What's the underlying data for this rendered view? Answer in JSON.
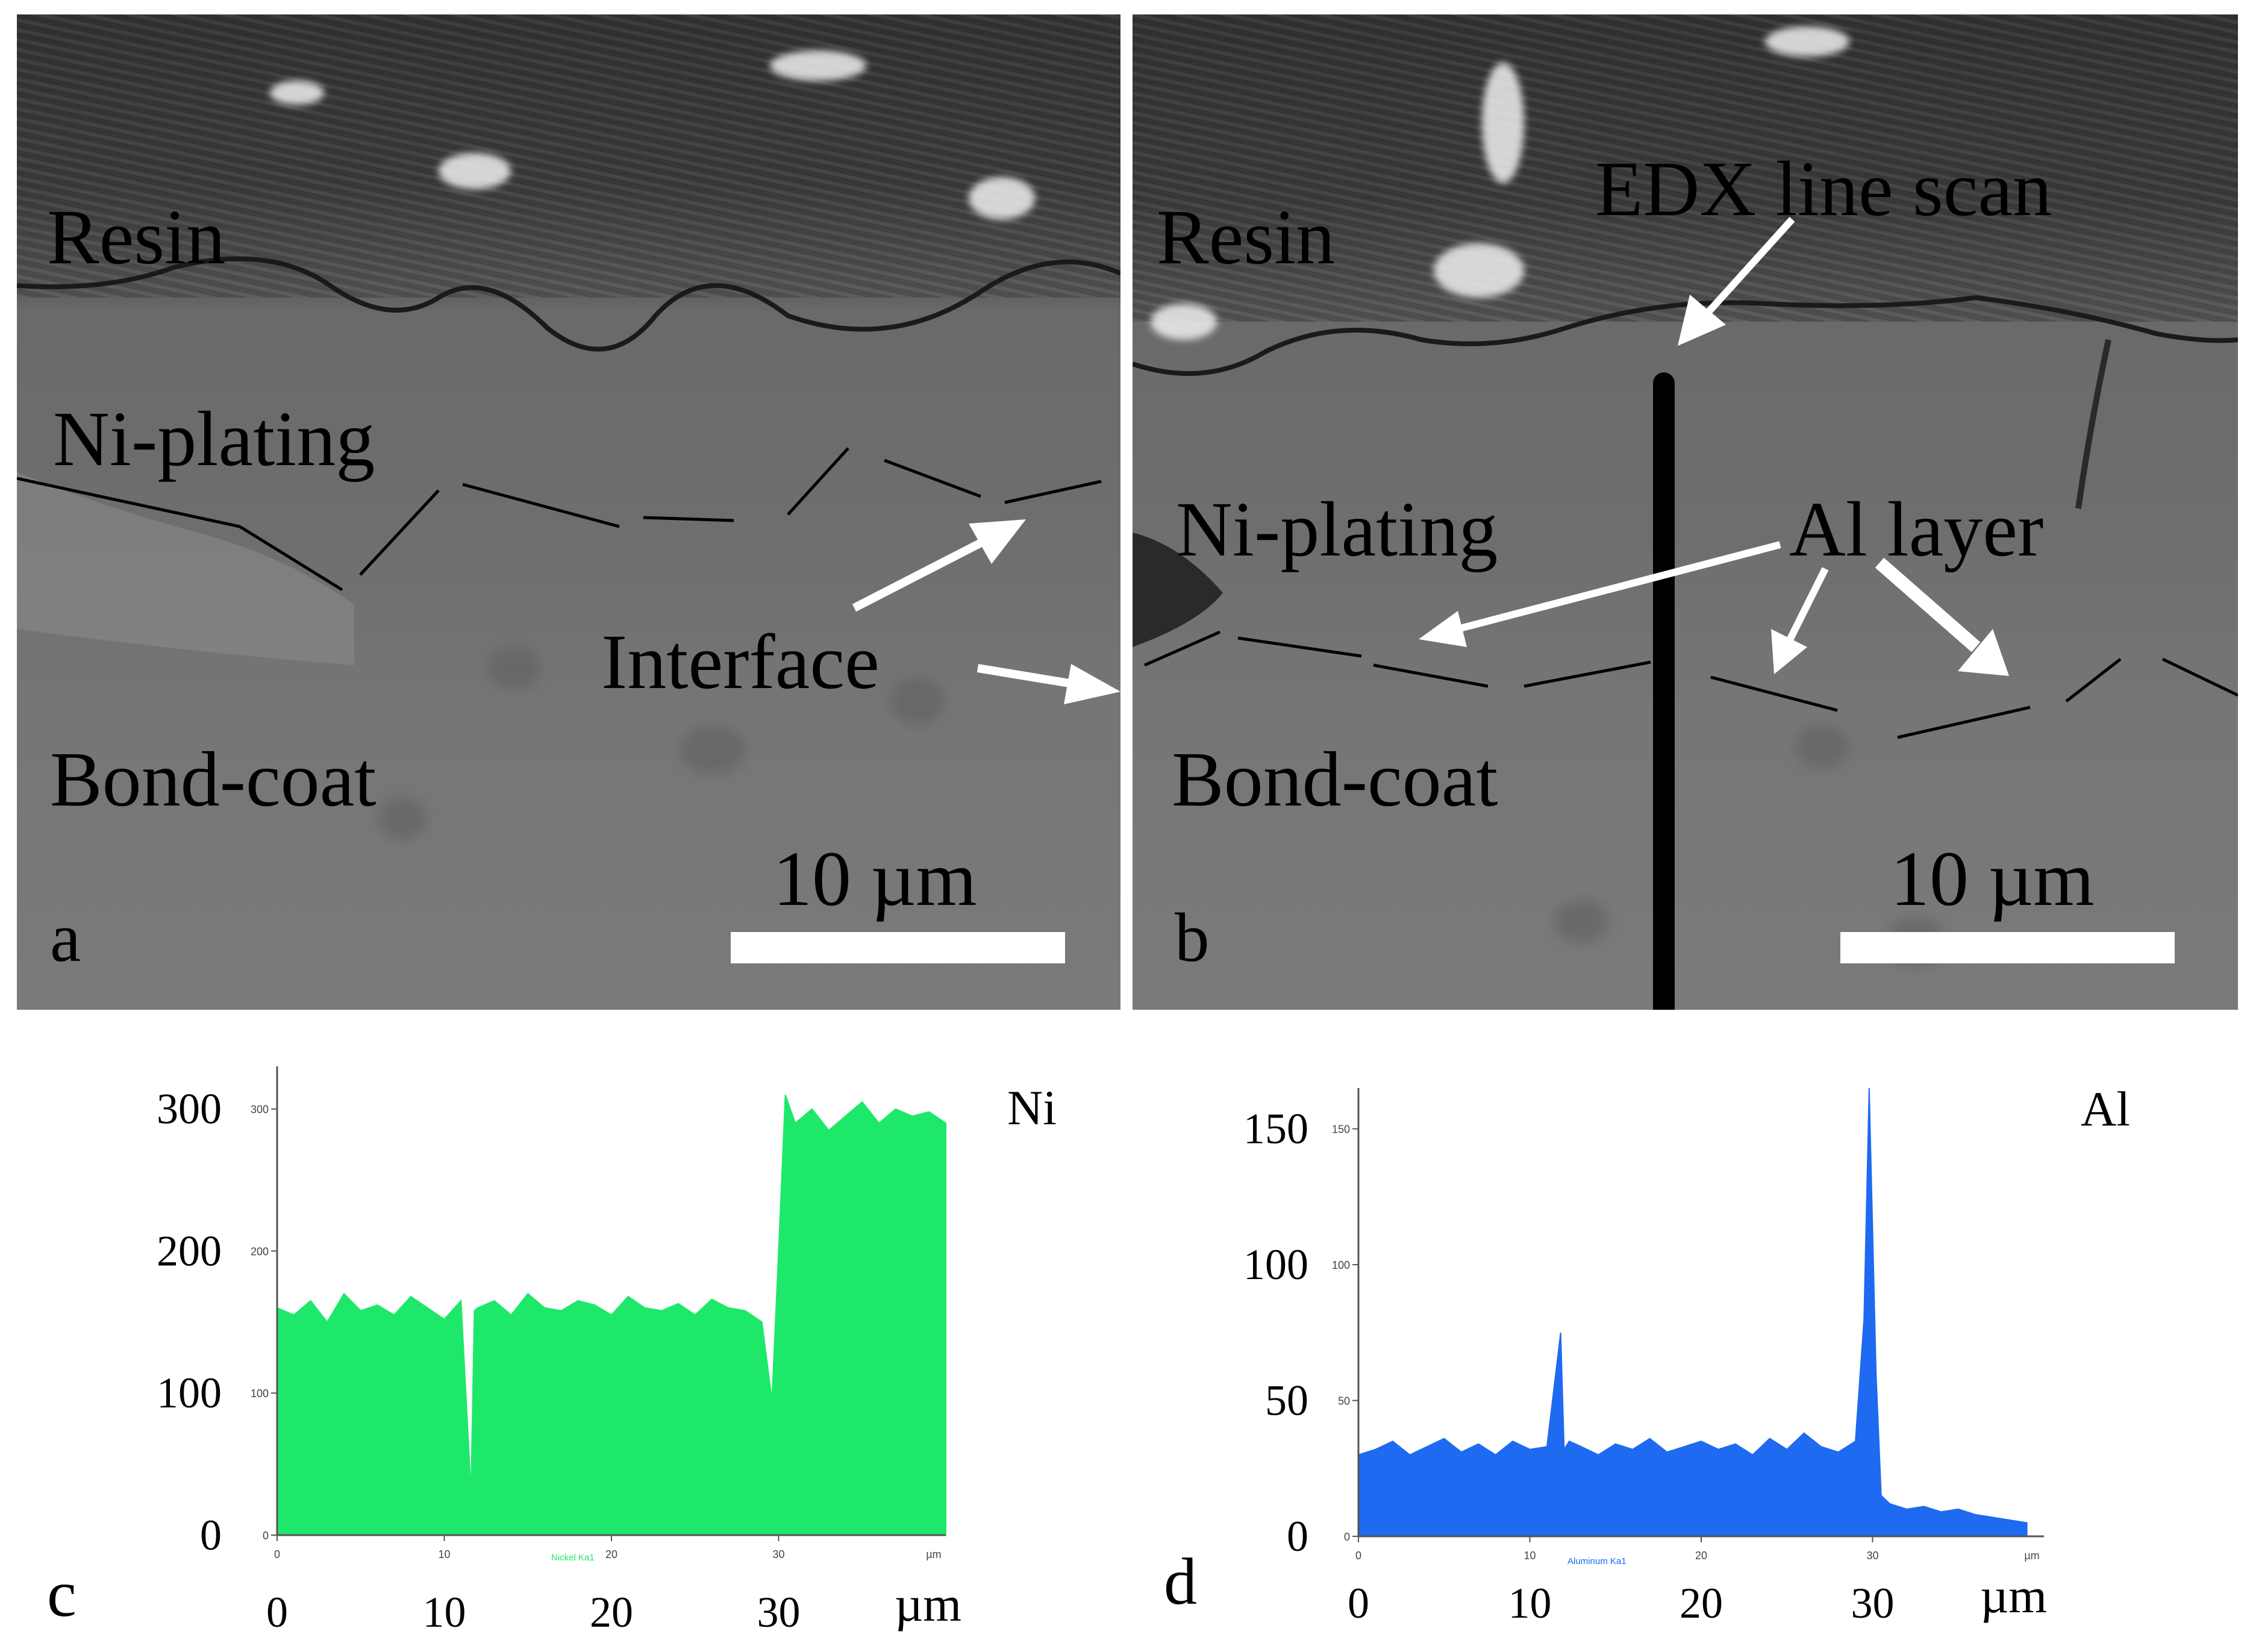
{
  "panels": {
    "a": {
      "letter": "a",
      "labels": {
        "resin": "Resin",
        "ni": "Ni-plating",
        "interface": "Interface",
        "bondcoat": "Bond-coat"
      },
      "scale_text": "10 µm"
    },
    "b": {
      "letter": "b",
      "labels": {
        "resin": "Resin",
        "edx": "EDX line scan",
        "ni": "Ni-plating",
        "al_layer": "Al layer",
        "bondcoat": "Bond-coat"
      },
      "scale_text": "10 µm"
    }
  },
  "colors": {
    "ni_series": "#1ee86a",
    "al_series": "#1e6af0"
  },
  "chart_data": [
    {
      "id": "c",
      "type": "area",
      "panel_letter": "c",
      "element_label": "Ni",
      "series_name": "Nickel Ka1",
      "x_unit": "µm",
      "ylim": [
        0,
        330
      ],
      "xlim": [
        0,
        40
      ],
      "yticks": [
        0,
        100,
        200,
        300
      ],
      "xticks": [
        0,
        10,
        20,
        30
      ],
      "small_yticks": [
        "300",
        "200",
        "100",
        "0"
      ],
      "small_xticks": [
        "0",
        "10",
        "20",
        "30",
        "µm"
      ],
      "x": [
        0,
        1,
        2,
        3,
        4,
        5,
        6,
        7,
        8,
        9,
        10,
        11,
        11.6,
        11.8,
        12,
        13,
        14,
        15,
        16,
        17,
        18,
        19,
        20,
        21,
        22,
        23,
        24,
        25,
        26,
        27,
        28,
        29,
        29.6,
        30,
        30.4,
        31,
        32,
        33,
        34,
        35,
        36,
        37,
        38,
        39,
        40
      ],
      "values": [
        160,
        155,
        165,
        150,
        170,
        158,
        162,
        155,
        168,
        160,
        152,
        165,
        30,
        158,
        160,
        165,
        155,
        170,
        160,
        158,
        165,
        162,
        155,
        168,
        160,
        158,
        163,
        155,
        166,
        160,
        158,
        150,
        95,
        200,
        310,
        290,
        300,
        285,
        295,
        305,
        290,
        300,
        295,
        298,
        290
      ]
    },
    {
      "id": "d",
      "type": "area",
      "panel_letter": "d",
      "element_label": "Al",
      "series_name": "Aluminum Ka1",
      "x_unit": "µm",
      "ylim": [
        0,
        165
      ],
      "xlim": [
        0,
        40
      ],
      "yticks": [
        0,
        50,
        100,
        150
      ],
      "xticks": [
        0,
        10,
        20,
        30
      ],
      "small_yticks": [
        "150",
        "100",
        "50",
        "0"
      ],
      "small_xticks": [
        "0",
        "10",
        "20",
        "30",
        "µm"
      ],
      "x": [
        0,
        1,
        2,
        3,
        4,
        5,
        6,
        7,
        8,
        9,
        10,
        11,
        11.8,
        12,
        12.3,
        13,
        14,
        15,
        16,
        17,
        18,
        19,
        20,
        21,
        22,
        23,
        24,
        25,
        26,
        27,
        28,
        29,
        29.5,
        29.8,
        30.2,
        30.5,
        31,
        32,
        33,
        34,
        35,
        36,
        37,
        38,
        39
      ],
      "values": [
        30,
        32,
        35,
        30,
        33,
        36,
        31,
        34,
        30,
        35,
        32,
        33,
        75,
        32,
        35,
        33,
        30,
        34,
        32,
        36,
        31,
        33,
        35,
        32,
        34,
        30,
        36,
        32,
        38,
        33,
        31,
        35,
        80,
        165,
        60,
        15,
        12,
        10,
        11,
        9,
        10,
        8,
        7,
        6,
        5
      ]
    }
  ]
}
